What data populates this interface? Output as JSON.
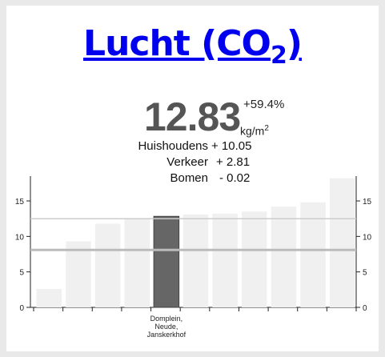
{
  "header": {
    "title_main": "Lucht (CO",
    "title_sub": "2",
    "title_close": ")"
  },
  "kpi": {
    "value": "12.83",
    "change": "+59.4%",
    "unit_base": "kg/m",
    "unit_exp": "2"
  },
  "breakdown": [
    {
      "label": "Huishoudens",
      "value": "+ 10.05"
    },
    {
      "label": "Verkeer",
      "value": "+ 2.81"
    },
    {
      "label": "Bomen",
      "value": "- 0.02"
    }
  ],
  "chart_data": {
    "type": "bar",
    "categories": [
      "",
      "",
      "",
      "",
      "Domplein, Neude, Janskerkhof",
      "",
      "",
      "",
      "",
      "",
      ""
    ],
    "values": [
      2.6,
      9.3,
      11.8,
      12.5,
      12.83,
      13.1,
      13.2,
      13.5,
      14.2,
      14.8,
      18.2
    ],
    "highlight_index": 4,
    "highlight_label_lines": [
      "Domplein,",
      "Neude,",
      "Janskerkhof"
    ],
    "ylim": [
      0,
      18.5
    ],
    "yticks": [
      0,
      5,
      10,
      15
    ],
    "ytick_labels": [
      "0",
      "5",
      "10",
      "15"
    ],
    "reference_lines": [
      12.5,
      8.1
    ],
    "colors": {
      "bar": "#f0f0f0",
      "highlight": "#666666",
      "reference_upper": "#cccccc",
      "reference_lower": "#bbbbbb"
    }
  }
}
